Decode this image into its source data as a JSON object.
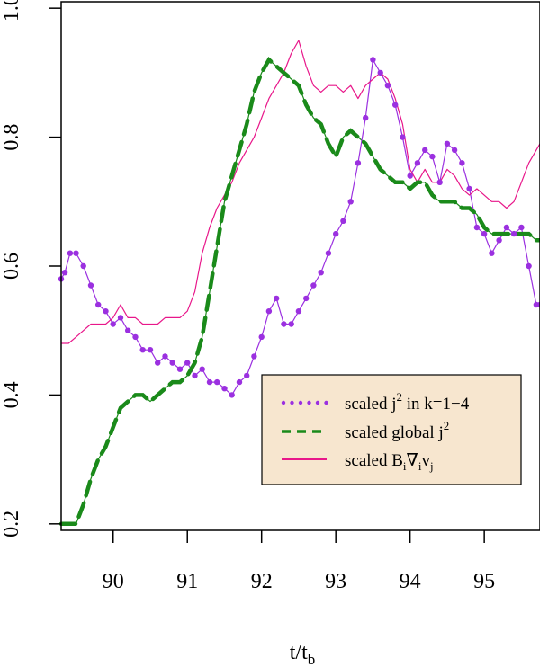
{
  "chart_data": {
    "type": "line",
    "title": "",
    "xlabel": "t/t",
    "xlabel_sub": "b",
    "ylabel": "",
    "xlim": [
      89.3,
      95.75
    ],
    "ylim": [
      0.19,
      1.01
    ],
    "x_ticks": [
      90,
      91,
      92,
      93,
      94,
      95
    ],
    "x_tick_labels": [
      "90",
      "91",
      "92",
      "93",
      "94",
      "95"
    ],
    "y_ticks": [
      0.2,
      0.4,
      0.6,
      0.8,
      1.0
    ],
    "y_tick_labels": [
      "0.2",
      "0.4",
      "0.6",
      "0.8",
      "1.0"
    ],
    "legend": {
      "position": "bottom-right",
      "background": "#f7e6cf",
      "entries": [
        {
          "key": "k14",
          "base": "scaled j",
          "sup": "2",
          "suffix": " in k=1−4"
        },
        {
          "key": "global",
          "base": "scaled global j",
          "sup": "2",
          "suffix": ""
        },
        {
          "key": "bvv",
          "base": "scaled B",
          "sub1": "i",
          "mid": "∇",
          "sub2": "i",
          "mid2": "v",
          "sub3": "j"
        }
      ]
    },
    "series": [
      {
        "name": "scaled j^2 in k=1-4",
        "key": "k14",
        "color": "#9b30e0",
        "style": "dotted",
        "x": [
          89.3,
          89.35,
          89.42,
          89.5,
          89.6,
          89.7,
          89.8,
          89.9,
          90.0,
          90.1,
          90.2,
          90.3,
          90.4,
          90.5,
          90.6,
          90.7,
          90.8,
          90.9,
          91.0,
          91.1,
          91.2,
          91.3,
          91.4,
          91.5,
          91.6,
          91.7,
          91.8,
          91.9,
          92.0,
          92.1,
          92.2,
          92.3,
          92.4,
          92.5,
          92.6,
          92.7,
          92.8,
          92.9,
          93.0,
          93.1,
          93.2,
          93.3,
          93.4,
          93.5,
          93.6,
          93.7,
          93.8,
          93.9,
          94.0,
          94.1,
          94.2,
          94.3,
          94.4,
          94.5,
          94.6,
          94.7,
          94.8,
          94.9,
          95.0,
          95.1,
          95.2,
          95.3,
          95.4,
          95.5,
          95.6,
          95.7,
          95.75
        ],
        "y": [
          0.58,
          0.59,
          0.62,
          0.62,
          0.6,
          0.57,
          0.54,
          0.53,
          0.51,
          0.52,
          0.5,
          0.49,
          0.47,
          0.47,
          0.45,
          0.46,
          0.45,
          0.44,
          0.45,
          0.43,
          0.44,
          0.42,
          0.42,
          0.41,
          0.4,
          0.42,
          0.43,
          0.46,
          0.49,
          0.53,
          0.55,
          0.51,
          0.51,
          0.53,
          0.55,
          0.57,
          0.59,
          0.62,
          0.65,
          0.67,
          0.7,
          0.76,
          0.83,
          0.92,
          0.9,
          0.88,
          0.85,
          0.8,
          0.74,
          0.76,
          0.78,
          0.77,
          0.73,
          0.79,
          0.78,
          0.76,
          0.72,
          0.66,
          0.65,
          0.62,
          0.64,
          0.66,
          0.65,
          0.66,
          0.6,
          0.54,
          0.54
        ]
      },
      {
        "name": "scaled global j^2",
        "key": "global",
        "color": "#1a8a1a",
        "style": "dashed",
        "x": [
          89.3,
          89.5,
          89.6,
          89.7,
          89.8,
          89.9,
          90.0,
          90.1,
          90.2,
          90.3,
          90.4,
          90.5,
          90.6,
          90.7,
          90.8,
          90.9,
          91.0,
          91.1,
          91.2,
          91.3,
          91.4,
          91.5,
          91.6,
          91.7,
          91.8,
          91.9,
          92.0,
          92.1,
          92.2,
          92.3,
          92.4,
          92.5,
          92.6,
          92.7,
          92.8,
          92.9,
          93.0,
          93.1,
          93.2,
          93.3,
          93.4,
          93.5,
          93.6,
          93.7,
          93.8,
          93.9,
          94.0,
          94.1,
          94.2,
          94.3,
          94.4,
          94.5,
          94.6,
          94.7,
          94.8,
          94.9,
          95.0,
          95.1,
          95.2,
          95.3,
          95.4,
          95.5,
          95.6,
          95.7,
          95.75
        ],
        "y": [
          0.2,
          0.2,
          0.23,
          0.27,
          0.3,
          0.32,
          0.35,
          0.38,
          0.39,
          0.4,
          0.4,
          0.39,
          0.4,
          0.41,
          0.42,
          0.42,
          0.43,
          0.45,
          0.49,
          0.56,
          0.63,
          0.7,
          0.74,
          0.78,
          0.82,
          0.87,
          0.9,
          0.92,
          0.91,
          0.9,
          0.89,
          0.88,
          0.85,
          0.83,
          0.82,
          0.79,
          0.77,
          0.8,
          0.81,
          0.8,
          0.79,
          0.77,
          0.75,
          0.74,
          0.73,
          0.73,
          0.72,
          0.73,
          0.73,
          0.71,
          0.7,
          0.7,
          0.7,
          0.69,
          0.69,
          0.68,
          0.66,
          0.65,
          0.65,
          0.65,
          0.65,
          0.65,
          0.65,
          0.64,
          0.64
        ]
      },
      {
        "name": "scaled BiNablaivj",
        "key": "bvv",
        "color": "#e8178a",
        "style": "solid",
        "x": [
          89.3,
          89.4,
          89.5,
          89.6,
          89.7,
          89.8,
          89.9,
          90.0,
          90.1,
          90.2,
          90.3,
          90.4,
          90.5,
          90.6,
          90.7,
          90.8,
          90.9,
          91.0,
          91.1,
          91.2,
          91.3,
          91.4,
          91.5,
          91.6,
          91.7,
          91.8,
          91.9,
          92.0,
          92.1,
          92.2,
          92.3,
          92.4,
          92.5,
          92.6,
          92.7,
          92.8,
          92.9,
          93.0,
          93.1,
          93.2,
          93.3,
          93.4,
          93.5,
          93.6,
          93.7,
          93.8,
          93.9,
          94.0,
          94.1,
          94.2,
          94.3,
          94.4,
          94.5,
          94.6,
          94.7,
          94.8,
          94.9,
          95.0,
          95.1,
          95.2,
          95.3,
          95.4,
          95.5,
          95.6,
          95.7,
          95.75
        ],
        "y": [
          0.48,
          0.48,
          0.49,
          0.5,
          0.51,
          0.51,
          0.51,
          0.52,
          0.54,
          0.52,
          0.52,
          0.51,
          0.51,
          0.51,
          0.52,
          0.52,
          0.52,
          0.53,
          0.56,
          0.62,
          0.66,
          0.69,
          0.71,
          0.73,
          0.76,
          0.78,
          0.8,
          0.83,
          0.86,
          0.88,
          0.9,
          0.93,
          0.95,
          0.91,
          0.88,
          0.87,
          0.88,
          0.88,
          0.87,
          0.88,
          0.86,
          0.88,
          0.89,
          0.9,
          0.89,
          0.86,
          0.82,
          0.75,
          0.73,
          0.75,
          0.73,
          0.73,
          0.75,
          0.74,
          0.72,
          0.71,
          0.72,
          0.71,
          0.7,
          0.7,
          0.69,
          0.7,
          0.73,
          0.76,
          0.78,
          0.79
        ]
      }
    ]
  }
}
